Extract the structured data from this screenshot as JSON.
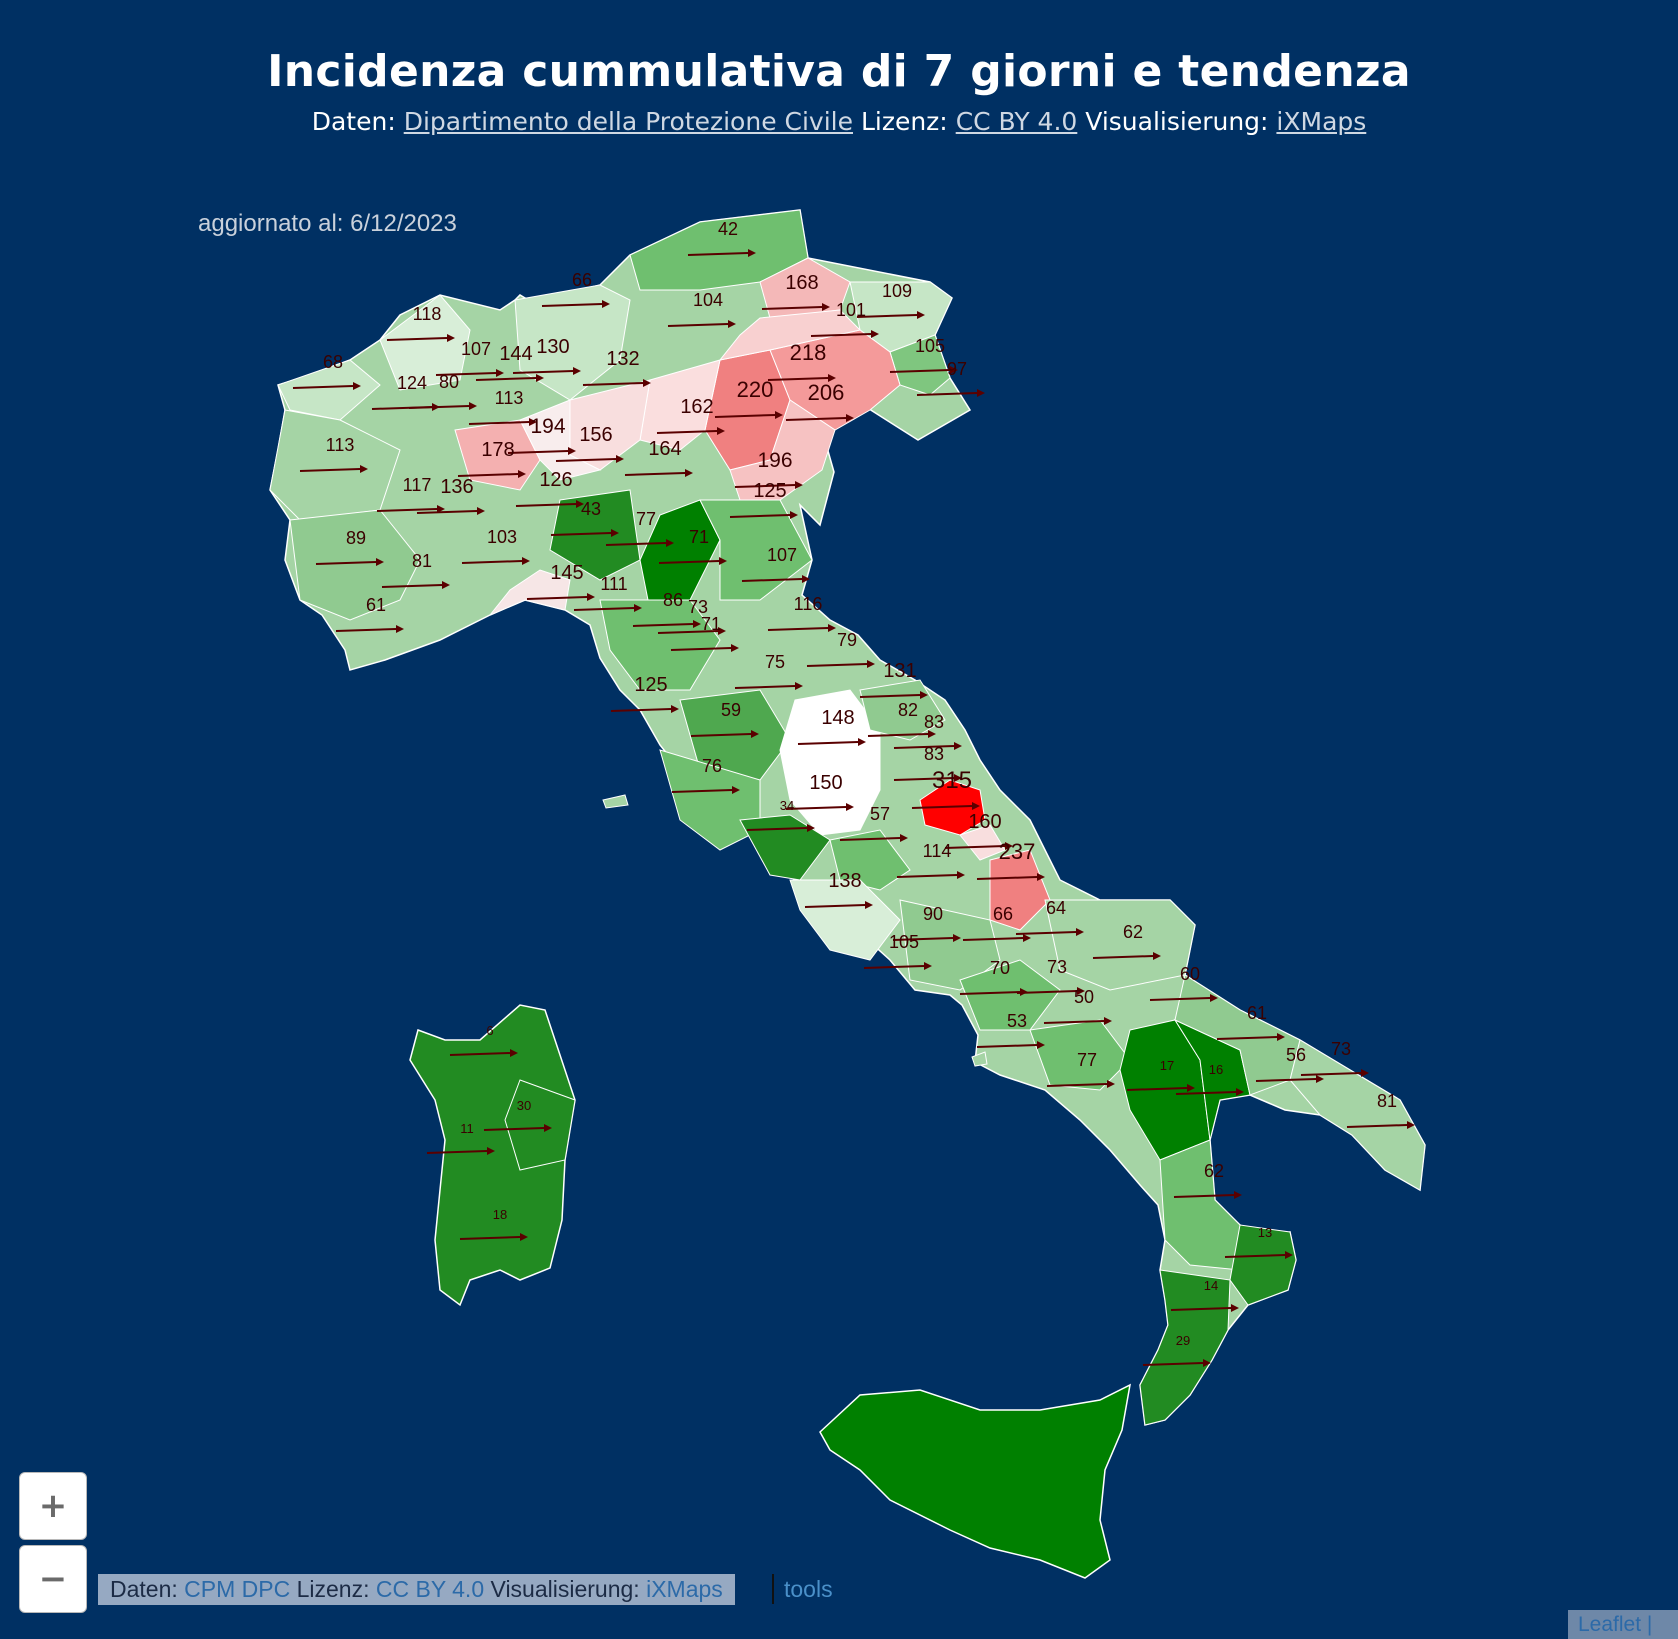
{
  "header": {
    "title": "Incidenza cummulativa di 7 giorni e tendenza",
    "data_label": "Daten:",
    "data_source": "Dipartimento della Protezione Civile",
    "license_label": "Lizenz:",
    "license": "CC BY 4.0",
    "viz_label": "Visualisierung:",
    "viz": "iXMaps"
  },
  "updated": "aggiornato al: 6/12/2023",
  "colors": {
    "background": "#003063",
    "high": "#ff0000",
    "medium_high": "#f08080",
    "neutral": "#ffffff",
    "low": "#a8d5a8",
    "very_low": "#008000",
    "arrow": "#5a0000"
  },
  "values": [
    "42",
    "66",
    "168",
    "109",
    "104",
    "101",
    "118",
    "107",
    "144",
    "130",
    "132",
    "105",
    "97",
    "68",
    "124",
    "80",
    "113",
    "218",
    "220",
    "206",
    "162",
    "194",
    "156",
    "164",
    "178",
    "196",
    "113",
    "117",
    "136",
    "126",
    "125",
    "89",
    "103",
    "43",
    "77",
    "71",
    "107",
    "81",
    "145",
    "111",
    "86",
    "73",
    "71",
    "116",
    "61",
    "79",
    "75",
    "131",
    "125",
    "82",
    "148",
    "83",
    "59",
    "83",
    "76",
    "150",
    "315",
    "34",
    "57",
    "160",
    "114",
    "237",
    "138",
    "90",
    "66",
    "64",
    "105",
    "62",
    "70",
    "73",
    "50",
    "60",
    "53",
    "61",
    "77",
    "56",
    "73",
    "17",
    "16",
    "81",
    "62",
    "13",
    "14",
    "29",
    "6",
    "30",
    "11",
    "18"
  ],
  "controls": {
    "zoom_in": "+",
    "zoom_out": "−"
  },
  "attribution": {
    "data_label": "Daten:",
    "data_source": "CPM DPC",
    "license_label": "Lizenz:",
    "license": "CC BY 4.0",
    "viz_label": "Visualisierung:",
    "viz": "iXMaps",
    "tools": "tools",
    "leaflet": "Leaflet |"
  }
}
